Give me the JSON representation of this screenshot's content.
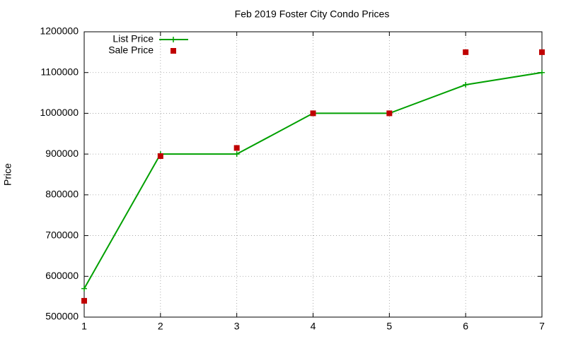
{
  "chart_data": {
    "type": "line",
    "title": "Feb 2019 Foster City Condo Prices",
    "y_label": "Price",
    "x": [
      1,
      2,
      3,
      4,
      5,
      6,
      7
    ],
    "series": [
      {
        "name": "List Price",
        "color": "#00a000",
        "mode": "lines+points",
        "marker": "plus",
        "values": [
          570000,
          900000,
          900000,
          1000000,
          1000000,
          1070000,
          1100000
        ]
      },
      {
        "name": "Sale Price",
        "color": "#c00000",
        "mode": "points",
        "marker": "square",
        "values": [
          540000,
          895000,
          915000,
          1000000,
          1000000,
          1150000,
          1150000
        ]
      }
    ],
    "xlim": [
      1,
      7
    ],
    "xticks": [
      1,
      2,
      3,
      4,
      5,
      6,
      7
    ],
    "ylim": [
      500000,
      1200000
    ],
    "yticks": [
      500000,
      600000,
      700000,
      800000,
      900000,
      1000000,
      1100000,
      1200000
    ],
    "grid": true,
    "legend": "top-left"
  }
}
